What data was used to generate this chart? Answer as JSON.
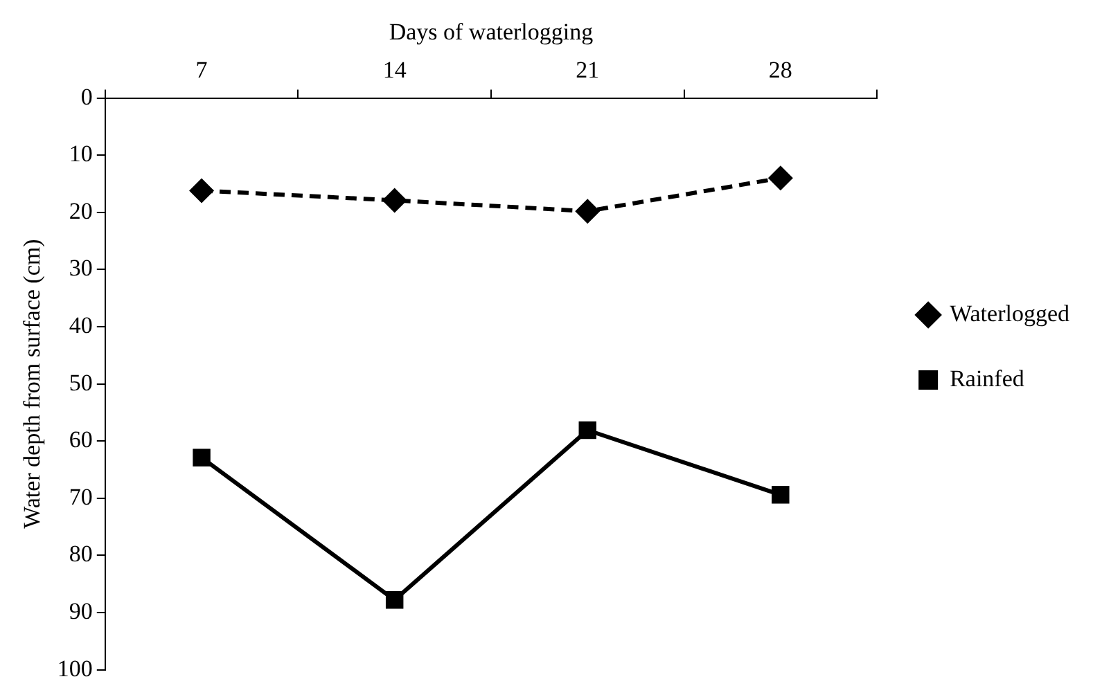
{
  "chart_data": {
    "type": "line",
    "xlabel": "Days of waterlogging",
    "ylabel": "Water depth from surface (cm)",
    "categories": [
      "7",
      "14",
      "21",
      "28"
    ],
    "series": [
      {
        "name": "Waterlogged",
        "color": "#000000",
        "values": [
          16.2,
          17.9,
          19.8,
          14.0
        ],
        "marker": "diamond",
        "line_style": "dashed"
      },
      {
        "name": "Rainfed",
        "color": "#000000",
        "values": [
          62.9,
          87.8,
          58.1,
          69.4
        ],
        "marker": "square",
        "line_style": "solid"
      }
    ],
    "ylim": [
      100,
      0
    ],
    "yticks": [
      0,
      10,
      20,
      30,
      40,
      50,
      60,
      70,
      80,
      90,
      100
    ],
    "grid": false,
    "legend": "right"
  }
}
